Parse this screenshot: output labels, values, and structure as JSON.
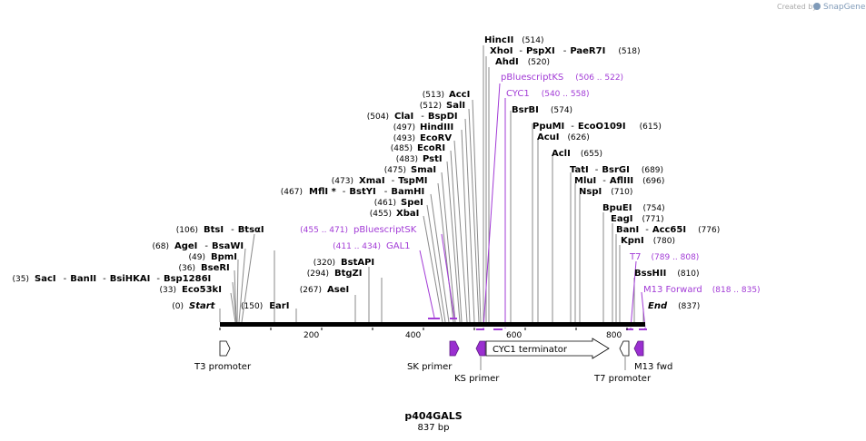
{
  "credit": {
    "created_by": "Created by",
    "brand": "SnapGene"
  },
  "title": "p404GALS",
  "subtitle": "837 bp",
  "colors": {
    "primer": "#a23bd6",
    "line": "#8a8a8a",
    "backbone": "#000000"
  },
  "ticks": [
    "200",
    "400",
    "600",
    "800"
  ],
  "labels": {
    "hincII": {
      "name": "HincII",
      "pos": "(514)"
    },
    "xhoI": {
      "name": "XhoI",
      "mid": "PspXI",
      "last": "PaeR7I",
      "pos": "(518)"
    },
    "ahdI": {
      "name": "AhdI",
      "pos": "(520)"
    },
    "accI": {
      "name": "AccI",
      "pos": "(513)"
    },
    "salI": {
      "name": "SalI",
      "pos": "(512)"
    },
    "claI": {
      "name": "ClaI",
      "last": "BspDI",
      "pos": "(504)"
    },
    "hindIII": {
      "name": "HindIII",
      "pos": "(497)"
    },
    "ecoRV": {
      "name": "EcoRV",
      "pos": "(493)"
    },
    "ecoRI": {
      "name": "EcoRI",
      "pos": "(485)"
    },
    "pstI": {
      "name": "PstI",
      "pos": "(483)"
    },
    "smaI": {
      "name": "SmaI",
      "pos": "(475)"
    },
    "xmaI": {
      "name": "XmaI",
      "last": "TspMI",
      "pos": "(473)"
    },
    "mflI": {
      "name": "MflI *",
      "mid": "BstYI",
      "last": "BamHI",
      "pos": "(467)"
    },
    "speI": {
      "name": "SpeI",
      "pos": "(461)"
    },
    "xbaI": {
      "name": "XbaI",
      "pos": "(455)"
    },
    "bsrBI": {
      "name": "BsrBI",
      "pos": "(574)"
    },
    "ppuMI": {
      "name": "PpuMI",
      "last": "EcoO109I",
      "pos": "(615)"
    },
    "acuI": {
      "name": "AcuI",
      "pos": "(626)"
    },
    "aclI": {
      "name": "AclI",
      "pos": "(655)"
    },
    "tatI": {
      "name": "TatI",
      "last": "BsrGI",
      "pos": "(689)"
    },
    "mluI": {
      "name": "MluI",
      "last": "AflIII",
      "pos": "(696)"
    },
    "nspI": {
      "name": "NspI",
      "pos": "(710)"
    },
    "bpuEI": {
      "name": "BpuEI",
      "pos": "(754)"
    },
    "eagI": {
      "name": "EagI",
      "pos": "(771)"
    },
    "banI": {
      "name": "BanI",
      "last": "Acc65I",
      "pos": "(776)"
    },
    "kpnI": {
      "name": "KpnI",
      "pos": "(780)"
    },
    "bssHII": {
      "name": "BssHII",
      "pos": "(810)"
    },
    "end": {
      "name": "End",
      "pos": "(837)"
    },
    "btsI": {
      "name": "BtsI",
      "last": "BtsαI",
      "pos": "(106)"
    },
    "ageI": {
      "name": "AgeI",
      "last": "BsaWI",
      "pos": "(68)"
    },
    "bpmI": {
      "name": "BpmI",
      "pos": "(49)"
    },
    "bseRI": {
      "name": "BseRI",
      "pos": "(36)"
    },
    "sacI": {
      "name": "SacI",
      "mid": "BanII",
      "mid2": "BsiHKAI",
      "last": "Bsp1286I",
      "pos": "(35)"
    },
    "eco53kI": {
      "name": "Eco53kI",
      "pos": "(33)"
    },
    "start": {
      "name": "Start",
      "pos": "(0)"
    },
    "earI": {
      "name": "EarI",
      "pos": "(150)"
    },
    "bstAPI": {
      "name": "BstAPI",
      "pos": "(320)"
    },
    "btgZI": {
      "name": "BtgZI",
      "pos": "(294)"
    },
    "aseI": {
      "name": "AseI",
      "pos": "(267)"
    }
  },
  "primers": {
    "pBluescriptKS": {
      "name": "pBluescriptKS",
      "range": "(506 .. 522)"
    },
    "cyc1": {
      "name": "CYC1",
      "range": "(540 .. 558)"
    },
    "pBluescriptSK": {
      "name": "pBluescriptSK",
      "range": "(455 .. 471)"
    },
    "gal1": {
      "name": "GAL1",
      "range": "(411 .. 434)"
    },
    "t7": {
      "name": "T7",
      "range": "(789 .. 808)"
    },
    "m13forward": {
      "name": "M13 Forward",
      "range": "(818 .. 835)"
    }
  },
  "features": {
    "t3": "T3 promoter",
    "sk": "SK primer",
    "ks": "KS primer",
    "cyc1term": "CYC1 terminator",
    "t7": "T7 promoter",
    "m13": "M13 fwd"
  }
}
